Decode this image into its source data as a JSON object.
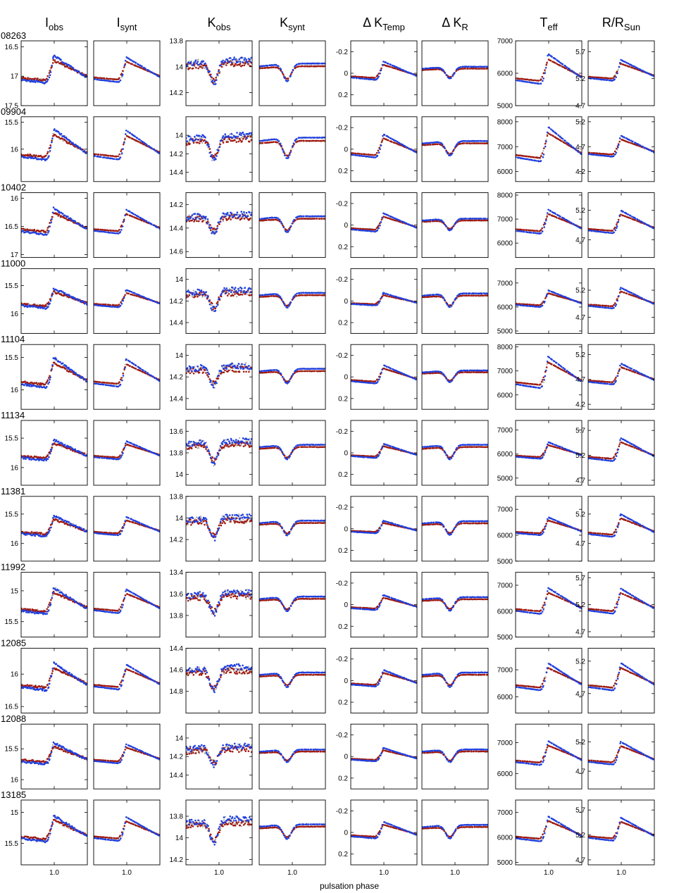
{
  "column_headers": [
    {
      "main": "I",
      "sub": "obs"
    },
    {
      "main": "I",
      "sub": "synt"
    },
    {
      "main": "K",
      "sub": "obs"
    },
    {
      "main": "K",
      "sub": "synt"
    },
    {
      "main": "Δ K",
      "sub": "Temp"
    },
    {
      "main": "Δ K",
      "sub": "R"
    },
    {
      "main": "T",
      "sub": "eff"
    },
    {
      "main": "R/R",
      "sub": "Sun"
    }
  ],
  "x_axis": {
    "label": "pulsation phase",
    "tick_label": "1.0",
    "tick_value": 1.0,
    "range": [
      0.55,
      1.45
    ]
  },
  "series_colors": {
    "blue": "#1f3fe0",
    "red": "#a01a10",
    "gray": "#a9a9a9"
  },
  "chart_data": {
    "type": "scatter",
    "x_label": "pulsation phase",
    "x_range": [
      0.55,
      1.45
    ],
    "x_ticks": [
      "1.0"
    ],
    "columns": [
      "I_obs",
      "I_synt",
      "K_obs",
      "K_synt",
      "ΔK_Temp",
      "ΔK_R",
      "T_eff",
      "R/R_Sun"
    ],
    "panels": [
      {
        "star": "08263",
        "y_ranges": [
          [
            16.4,
            17.5
          ],
          [
            16.4,
            17.5
          ],
          [
            13.8,
            14.3
          ],
          [
            13.8,
            14.3
          ],
          [
            -0.3,
            0.3
          ],
          [
            -0.3,
            0.3
          ],
          [
            5000,
            7000
          ],
          [
            4.7,
            5.9
          ]
        ],
        "y_ticks": [
          [
            "16.5",
            "17",
            "17.5"
          ],
          [],
          [
            "13.8",
            "14",
            "14.2"
          ],
          [],
          [
            "-0.2",
            "0",
            "0.2"
          ],
          [],
          [
            "7000",
            "6000",
            "5000"
          ],
          [
            "5.7",
            "5.2",
            "4.7"
          ]
        ],
        "amp": [
          0.6,
          0.55,
          0.2,
          0.15,
          0.22,
          0.12,
          1200,
          0.5
        ]
      },
      {
        "star": "09904",
        "y_ranges": [
          [
            15.4,
            16.6
          ],
          [
            15.4,
            16.6
          ],
          [
            13.8,
            14.5
          ],
          [
            13.8,
            14.5
          ],
          [
            -0.3,
            0.3
          ],
          [
            -0.3,
            0.3
          ],
          [
            5600,
            8200
          ],
          [
            4.0,
            5.3
          ]
        ],
        "y_ticks": [
          [
            "15.5",
            "16"
          ],
          [],
          [
            "14",
            "14.2",
            "14.4"
          ],
          [],
          [
            "-0.2",
            "0",
            "0.2"
          ],
          [],
          [
            "8000",
            "7000",
            "6000"
          ],
          [
            "5.2",
            "4.7",
            "4.2"
          ]
        ],
        "amp": [
          0.75,
          0.7,
          0.3,
          0.25,
          0.28,
          0.15,
          1800,
          0.55
        ]
      },
      {
        "star": "10402",
        "y_ranges": [
          [
            15.9,
            17.05
          ],
          [
            15.9,
            17.05
          ],
          [
            14.1,
            14.65
          ],
          [
            14.1,
            14.65
          ],
          [
            -0.3,
            0.3
          ],
          [
            -0.3,
            0.3
          ],
          [
            5400,
            8100
          ],
          [
            4.4,
            5.5
          ]
        ],
        "y_ticks": [
          [
            "16",
            "16.5",
            "17"
          ],
          [],
          [
            "14.2",
            "14.4",
            "14.6"
          ],
          [],
          [
            "-0.2",
            "0",
            "0.2"
          ],
          [],
          [
            "8000",
            "7000",
            "6000"
          ],
          [
            "5.2",
            "4.7"
          ]
        ],
        "amp": [
          0.6,
          0.55,
          0.18,
          0.15,
          0.22,
          0.12,
          1300,
          0.5
        ]
      },
      {
        "star": "11000",
        "y_ranges": [
          [
            15.2,
            16.35
          ],
          [
            15.2,
            16.35
          ],
          [
            13.9,
            14.5
          ],
          [
            13.9,
            14.5
          ],
          [
            -0.3,
            0.3
          ],
          [
            -0.3,
            0.3
          ],
          [
            4900,
            7600
          ],
          [
            4.4,
            5.6
          ]
        ],
        "y_ticks": [
          [
            "15.5",
            "16"
          ],
          [],
          [
            "14",
            "14.2",
            "14.4"
          ],
          [],
          [
            "-0.2",
            "0",
            "0.2"
          ],
          [],
          [
            "7000",
            "6000",
            "5000"
          ],
          [
            "5.2",
            "4.7"
          ]
        ],
        "amp": [
          0.45,
          0.4,
          0.2,
          0.15,
          0.15,
          0.14,
          900,
          0.5
        ]
      },
      {
        "star": "11104",
        "y_ranges": [
          [
            15.3,
            16.3
          ],
          [
            15.3,
            16.3
          ],
          [
            13.9,
            14.5
          ],
          [
            13.9,
            14.5
          ],
          [
            -0.3,
            0.3
          ],
          [
            -0.3,
            0.3
          ],
          [
            5400,
            8100
          ],
          [
            4.1,
            5.4
          ]
        ],
        "y_ticks": [
          [
            "15.5",
            "16"
          ],
          [],
          [
            "14",
            "14.2",
            "14.4"
          ],
          [],
          [
            "-0.2",
            "0",
            "0.2"
          ],
          [],
          [
            "8000",
            "7000",
            "6000"
          ],
          [
            "5.2",
            "4.7",
            "4.2"
          ]
        ],
        "amp": [
          0.6,
          0.55,
          0.2,
          0.15,
          0.22,
          0.12,
          1700,
          0.55
        ]
      },
      {
        "star": "11134",
        "y_ranges": [
          [
            15.2,
            16.3
          ],
          [
            15.2,
            16.3
          ],
          [
            13.5,
            14.1
          ],
          [
            13.5,
            14.1
          ],
          [
            -0.3,
            0.3
          ],
          [
            -0.3,
            0.3
          ],
          [
            4700,
            7400
          ],
          [
            4.6,
            5.9
          ]
        ],
        "y_ticks": [
          [
            "15.5",
            "16"
          ],
          [],
          [
            "13.6",
            "13.8",
            "14"
          ],
          [],
          [
            "-0.2",
            "0",
            "0.2"
          ],
          [],
          [
            "7000",
            "6000",
            "5000"
          ],
          [
            "5.7",
            "5.2",
            "4.7"
          ]
        ],
        "amp": [
          0.45,
          0.4,
          0.22,
          0.15,
          0.17,
          0.15,
          900,
          0.6
        ]
      },
      {
        "star": "11381",
        "y_ranges": [
          [
            15.2,
            16.3
          ],
          [
            15.2,
            16.3
          ],
          [
            13.8,
            14.4
          ],
          [
            13.8,
            14.4
          ],
          [
            -0.3,
            0.3
          ],
          [
            -0.3,
            0.3
          ],
          [
            5000,
            7500
          ],
          [
            4.4,
            5.5
          ]
        ],
        "y_ticks": [
          [
            "15.5",
            "16"
          ],
          [],
          [
            "13.8",
            "14",
            "14.2"
          ],
          [],
          [
            "-0.2",
            "0",
            "0.2"
          ],
          [],
          [
            "7000",
            "6000",
            "5000"
          ],
          [
            "5.2",
            "4.7"
          ]
        ],
        "amp": [
          0.45,
          0.4,
          0.22,
          0.15,
          0.15,
          0.14,
          900,
          0.5
        ]
      },
      {
        "star": "11992",
        "y_ranges": [
          [
            14.7,
            15.75
          ],
          [
            14.7,
            15.75
          ],
          [
            13.4,
            14.0
          ],
          [
            13.4,
            14.0
          ],
          [
            -0.3,
            0.3
          ],
          [
            -0.3,
            0.3
          ],
          [
            5000,
            7500
          ],
          [
            4.6,
            5.8
          ]
        ],
        "y_ticks": [
          [
            "15",
            "15.5"
          ],
          [],
          [
            "13.4",
            "13.6",
            "13.8"
          ],
          [],
          [
            "-0.2",
            "0",
            "0.2"
          ],
          [],
          [
            "7000",
            "6000",
            "5000"
          ],
          [
            "5.7",
            "5.2",
            "4.7"
          ]
        ],
        "amp": [
          0.55,
          0.5,
          0.22,
          0.15,
          0.18,
          0.14,
          1300,
          0.6
        ]
      },
      {
        "star": "12085",
        "y_ranges": [
          [
            15.6,
            16.6
          ],
          [
            15.6,
            16.6
          ],
          [
            14.4,
            15.0
          ],
          [
            14.4,
            15.0
          ],
          [
            -0.3,
            0.3
          ],
          [
            -0.3,
            0.3
          ],
          [
            5400,
            7800
          ],
          [
            4.4,
            5.4
          ]
        ],
        "y_ticks": [
          [
            "16",
            "16.5"
          ],
          [],
          [
            "14.4",
            "14.6",
            "14.8"
          ],
          [],
          [
            "-0.2",
            "0",
            "0.2"
          ],
          [],
          [
            "7000",
            "6000"
          ],
          [
            "5.2",
            "4.7"
          ]
        ],
        "amp": [
          0.55,
          0.5,
          0.25,
          0.15,
          0.2,
          0.15,
          1300,
          0.55
        ]
      },
      {
        "star": "12088",
        "y_ranges": [
          [
            15.1,
            16.15
          ],
          [
            15.1,
            16.15
          ],
          [
            13.85,
            14.55
          ],
          [
            13.85,
            14.55
          ],
          [
            -0.3,
            0.3
          ],
          [
            -0.3,
            0.3
          ],
          [
            5500,
            7600
          ],
          [
            4.4,
            5.5
          ]
        ],
        "y_ticks": [
          [
            "15",
            "15.5",
            "16"
          ],
          [],
          [
            "14",
            "14.2",
            "14.4"
          ],
          [],
          [
            "-0.2",
            "0",
            "0.2"
          ],
          [],
          [
            "7000",
            "6000"
          ],
          [
            "5.2",
            "4.7"
          ]
        ],
        "amp": [
          0.45,
          0.4,
          0.22,
          0.15,
          0.16,
          0.13,
          1000,
          0.5
        ]
      },
      {
        "star": "13185",
        "y_ranges": [
          [
            14.8,
            15.85
          ],
          [
            14.8,
            15.85
          ],
          [
            13.65,
            14.25
          ],
          [
            13.65,
            14.25
          ],
          [
            -0.3,
            0.3
          ],
          [
            -0.3,
            0.3
          ],
          [
            4900,
            7500
          ],
          [
            4.6,
            5.9
          ]
        ],
        "y_ticks": [
          [
            "15",
            "15.5"
          ],
          [],
          [
            "13.8",
            "14",
            "14.2"
          ],
          [],
          [
            "-0.2",
            "0",
            "0.2"
          ],
          [],
          [
            "7000",
            "6000",
            "5000"
          ],
          [
            "5.7",
            "5.2",
            "4.7"
          ]
        ],
        "amp": [
          0.55,
          0.5,
          0.25,
          0.15,
          0.2,
          0.14,
          1300,
          0.6
        ]
      }
    ]
  }
}
